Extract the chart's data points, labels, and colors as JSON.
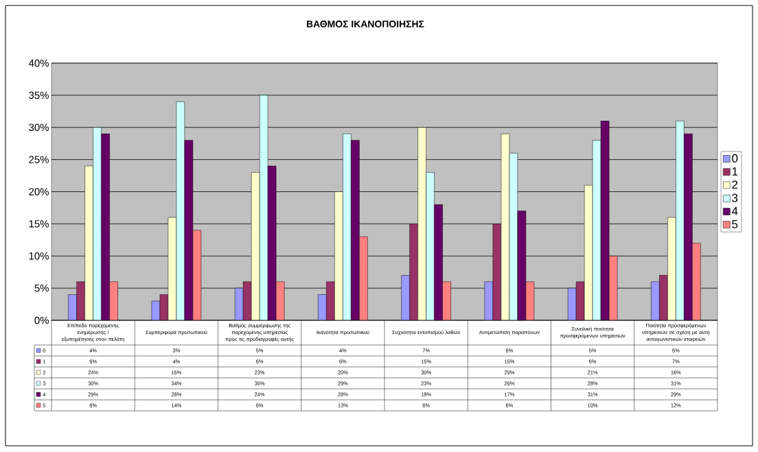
{
  "chart_data": {
    "type": "bar",
    "title": "ΒΑΘΜΟΣ ΙΚΑΝΟΠΟΙΗΣΗΣ",
    "categories": [
      "Επίπεδο παρεχόμενης ενημέρωσης / εξυπηρέτησης στον πελάτη",
      "Συμπεριφορά προσωπικού",
      "Βαθμός συμμόρφωσης της παρεχόμενης υπηρεσίας προς τις προδιαγραφές αυτής",
      "Ικανότητα προσωπικού",
      "Συχνότητα εντοπισμού λαθών",
      "Αντιμετώπιση παραπόνων",
      "Συνολική ποιότητα προσφερόμενων υπηρεσιών",
      "Ποιότητα προσφερόμενων υπηρεσιών σε σχέση με αυτή ανταγωνιστικών εταιρειών"
    ],
    "series": [
      {
        "name": "0",
        "color": "#9999ff",
        "values": [
          4,
          3,
          5,
          4,
          7,
          6,
          5,
          6
        ],
        "value_labels": [
          "4%",
          "3%",
          "5%",
          "4%",
          "7%",
          "6%",
          "5%",
          "6%"
        ]
      },
      {
        "name": "1",
        "color": "#993366",
        "values": [
          6,
          4,
          6,
          6,
          15,
          15,
          6,
          7
        ],
        "value_labels": [
          "6%",
          "4%",
          "6%",
          "6%",
          "15%",
          "15%",
          "6%",
          "7%"
        ]
      },
      {
        "name": "2",
        "color": "#ffffcc",
        "values": [
          24,
          16,
          23,
          20,
          30,
          29,
          21,
          16
        ],
        "value_labels": [
          "24%",
          "16%",
          "23%",
          "20%",
          "30%",
          "29%",
          "21%",
          "16%"
        ]
      },
      {
        "name": "3",
        "color": "#ccffff",
        "values": [
          30,
          34,
          35,
          29,
          23,
          26,
          28,
          31
        ],
        "value_labels": [
          "30%",
          "34%",
          "35%",
          "29%",
          "23%",
          "26%",
          "28%",
          "31%"
        ]
      },
      {
        "name": "4",
        "color": "#660066",
        "values": [
          29,
          28,
          24,
          28,
          18,
          17,
          31,
          29
        ],
        "value_labels": [
          "29%",
          "28%",
          "24%",
          "28%",
          "18%",
          "17%",
          "31%",
          "29%"
        ]
      },
      {
        "name": "5",
        "color": "#ff8080",
        "values": [
          6,
          14,
          6,
          13,
          6,
          6,
          10,
          12
        ],
        "value_labels": [
          "6%",
          "14%",
          "6%",
          "13%",
          "6%",
          "6%",
          "10%",
          "12%"
        ]
      }
    ],
    "ylim": [
      0,
      40
    ],
    "yticks": [
      {
        "value": 0,
        "label": "0%"
      },
      {
        "value": 5,
        "label": "5%"
      },
      {
        "value": 10,
        "label": "10%"
      },
      {
        "value": 15,
        "label": "15%"
      },
      {
        "value": 20,
        "label": "20%"
      },
      {
        "value": 25,
        "label": "25%"
      },
      {
        "value": 30,
        "label": "30%"
      },
      {
        "value": 35,
        "label": "35%"
      },
      {
        "value": 40,
        "label": "40%"
      }
    ],
    "grid": "y",
    "legend": "right"
  }
}
